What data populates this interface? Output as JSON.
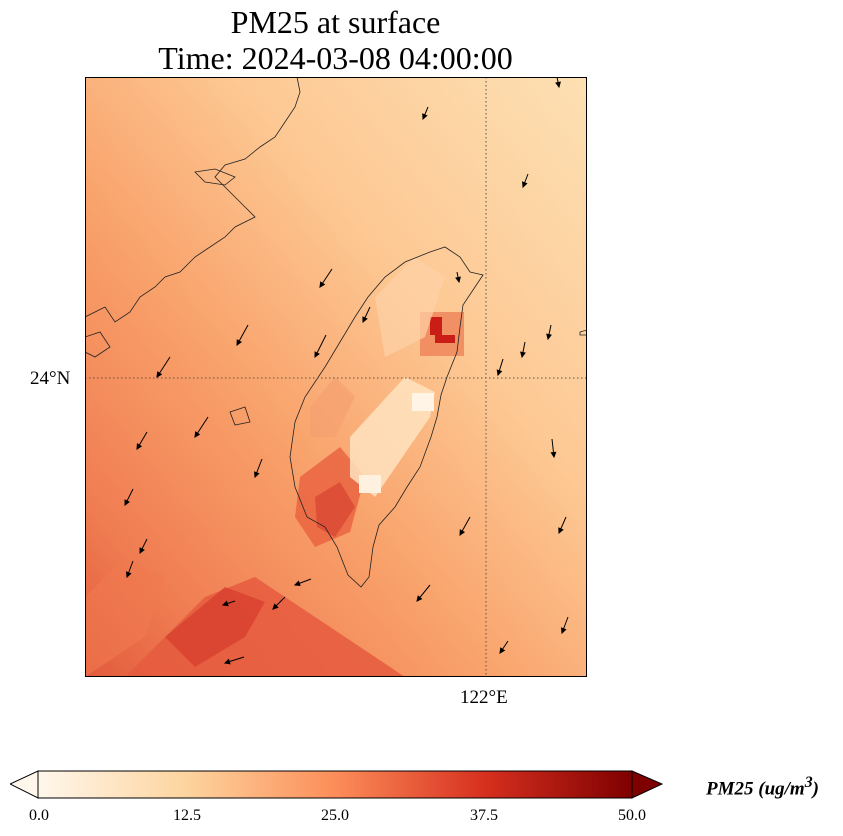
{
  "title": {
    "line1": "PM25 at surface",
    "line2": "Time: 2024-03-08 04:00:00"
  },
  "axes": {
    "lat_label": "24°N",
    "lon_label": "122°E",
    "gridlines": "dotted"
  },
  "colorbar": {
    "label": "PM25 (ug/m",
    "label_sup": "3",
    "label_end": ")",
    "ticks": [
      "0.0",
      "12.5",
      "25.0",
      "37.5",
      "50.0"
    ],
    "min": 0,
    "max": 50,
    "extend": "both",
    "colormap": "OrRd",
    "colors": [
      "#fff7ec",
      "#fdd49e",
      "#fc8d59",
      "#d7301f",
      "#7f0000"
    ]
  },
  "wind_vectors": "black arrows, mostly pointing south-southwest"
}
